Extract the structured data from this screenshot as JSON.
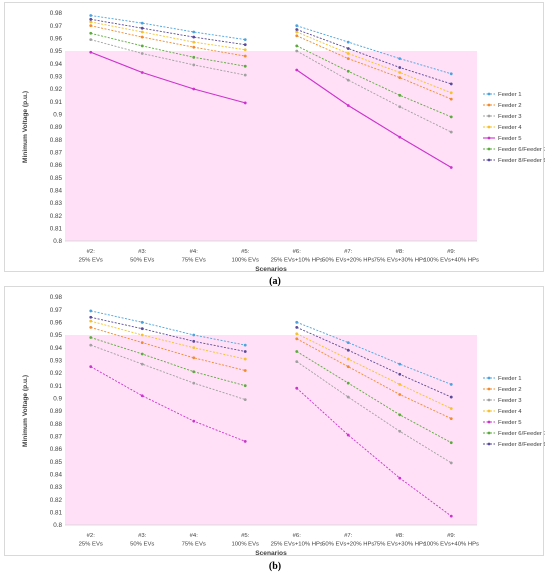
{
  "chart_data": [
    {
      "type": "line",
      "panel": "a",
      "xlabel": "Scenarios",
      "ylabel": "Minimum Voltage (p.u.)",
      "ylim": [
        0.8,
        0.98
      ],
      "ytick_step": 0.01,
      "ytick_labels": [
        "0.8",
        "0.81",
        "0.82",
        "0.83",
        "0.84",
        "0.85",
        "0.86",
        "0.87",
        "0.88",
        "0.89",
        "0.9",
        "0.91",
        "0.92",
        "0.93",
        "0.94",
        "0.95",
        "0.96",
        "0.97",
        "0.98"
      ],
      "threshold_band": [
        0.8,
        0.95
      ],
      "band_color": "#ffe0f7",
      "groups": [
        [
          0,
          1,
          2,
          3
        ],
        [
          4,
          5,
          6,
          7
        ]
      ],
      "categories": [
        {
          "line1": "#2:",
          "line2": "25% EVs"
        },
        {
          "line1": "#3:",
          "line2": "50% EVs"
        },
        {
          "line1": "#4:",
          "line2": "75% EVs"
        },
        {
          "line1": "#5:",
          "line2": "100% EVs"
        },
        {
          "line1": "#6:",
          "line2": "25% EVs+10% HPs"
        },
        {
          "line1": "#7:",
          "line2": "50% EVs+20% HPs"
        },
        {
          "line1": "#8:",
          "line2": "75% EVs+30% HPs"
        },
        {
          "line1": "#9:",
          "line2": "100% EVs+40% HPs"
        }
      ],
      "legend_position": "right",
      "series": [
        {
          "name": "Feeder 1",
          "color": "#4aa3df",
          "dash": "2,1.5",
          "width": 0.9,
          "values": [
            0.978,
            0.972,
            0.965,
            0.959,
            0.97,
            0.957,
            0.944,
            0.932
          ]
        },
        {
          "name": "Feeder 2",
          "color": "#f08a2e",
          "dash": "2,1.5",
          "width": 0.9,
          "values": [
            0.97,
            0.961,
            0.953,
            0.946,
            0.962,
            0.944,
            0.929,
            0.912
          ]
        },
        {
          "name": "Feeder 3",
          "color": "#a0a0a0",
          "dash": "2,1.5",
          "width": 0.9,
          "values": [
            0.959,
            0.948,
            0.939,
            0.931,
            0.95,
            0.927,
            0.906,
            0.886
          ]
        },
        {
          "name": "Feeder 4",
          "color": "#f6c12a",
          "dash": "2,1.5",
          "width": 0.9,
          "values": [
            0.973,
            0.965,
            0.957,
            0.951,
            0.965,
            0.948,
            0.933,
            0.917
          ]
        },
        {
          "name": "Feeder 5",
          "color": "#cc33cc",
          "dash": "",
          "width": 1.1,
          "values": [
            0.949,
            0.933,
            0.92,
            0.909,
            0.935,
            0.907,
            0.882,
            0.858
          ]
        },
        {
          "name": "Feeder 6/Feeder 7",
          "color": "#5aaa3c",
          "dash": "2,1.5",
          "width": 0.9,
          "values": [
            0.964,
            0.954,
            0.945,
            0.938,
            0.954,
            0.934,
            0.915,
            0.898
          ]
        },
        {
          "name": "Feeder 8/Feeder 9",
          "color": "#5a4a9a",
          "dash": "2,1.5",
          "width": 0.9,
          "values": [
            0.975,
            0.968,
            0.961,
            0.955,
            0.967,
            0.952,
            0.937,
            0.924
          ]
        }
      ]
    },
    {
      "type": "line",
      "panel": "b",
      "xlabel": "Scenarios",
      "ylabel": "Minimum Voltage (p.u.)",
      "ylim": [
        0.8,
        0.98
      ],
      "ytick_step": 0.01,
      "ytick_labels": [
        "0.8",
        "0.81",
        "0.82",
        "0.83",
        "0.84",
        "0.85",
        "0.86",
        "0.87",
        "0.88",
        "0.89",
        "0.9",
        "0.91",
        "0.92",
        "0.93",
        "0.94",
        "0.95",
        "0.96",
        "0.97",
        "0.98"
      ],
      "threshold_band": [
        0.8,
        0.95
      ],
      "band_color": "#ffe0f7",
      "groups": [
        [
          0,
          1,
          2,
          3
        ],
        [
          4,
          5,
          6,
          7
        ]
      ],
      "categories": [
        {
          "line1": "#2:",
          "line2": "25% EVs"
        },
        {
          "line1": "#3:",
          "line2": "50% EVs"
        },
        {
          "line1": "#4:",
          "line2": "75% EVs"
        },
        {
          "line1": "#5:",
          "line2": "100% EVs"
        },
        {
          "line1": "#6:",
          "line2": "25% EVs+10% HPs"
        },
        {
          "line1": "#7:",
          "line2": "50% EVs+20% HPs"
        },
        {
          "line1": "#8:",
          "line2": "75% EVs+30% HPs"
        },
        {
          "line1": "#9:",
          "line2": "100% EVs+40% HPs"
        }
      ],
      "legend_position": "right",
      "series": [
        {
          "name": "Feeder 1",
          "color": "#4aa3df",
          "dash": "2,1.5",
          "width": 0.9,
          "values": [
            0.969,
            0.96,
            0.95,
            0.942,
            0.96,
            0.944,
            0.927,
            0.911
          ]
        },
        {
          "name": "Feeder 2",
          "color": "#f08a2e",
          "dash": "2,1.5",
          "width": 0.9,
          "values": [
            0.956,
            0.944,
            0.932,
            0.922,
            0.947,
            0.925,
            0.903,
            0.884
          ]
        },
        {
          "name": "Feeder 3",
          "color": "#a0a0a0",
          "dash": "2,1.5",
          "width": 0.9,
          "values": [
            0.942,
            0.927,
            0.912,
            0.899,
            0.929,
            0.901,
            0.874,
            0.849
          ]
        },
        {
          "name": "Feeder 4",
          "color": "#f6c12a",
          "dash": "2,1.5",
          "width": 0.9,
          "values": [
            0.961,
            0.95,
            0.94,
            0.931,
            0.951,
            0.931,
            0.911,
            0.892
          ]
        },
        {
          "name": "Feeder 5",
          "color": "#cc33cc",
          "dash": "2,1.5",
          "width": 0.9,
          "values": [
            0.925,
            0.902,
            0.882,
            0.866,
            0.908,
            0.871,
            0.837,
            0.807
          ]
        },
        {
          "name": "Feeder 6/Feeder 7",
          "color": "#5aaa3c",
          "dash": "2,1.5",
          "width": 0.9,
          "values": [
            0.948,
            0.935,
            0.921,
            0.91,
            0.937,
            0.912,
            0.887,
            0.865
          ]
        },
        {
          "name": "Feeder 8/Feeder 9",
          "color": "#5a4a9a",
          "dash": "2,1.5",
          "width": 0.9,
          "values": [
            0.964,
            0.955,
            0.945,
            0.937,
            0.956,
            0.938,
            0.919,
            0.901
          ]
        }
      ]
    }
  ],
  "captions": {
    "a": "(a)",
    "b": "(b)"
  }
}
